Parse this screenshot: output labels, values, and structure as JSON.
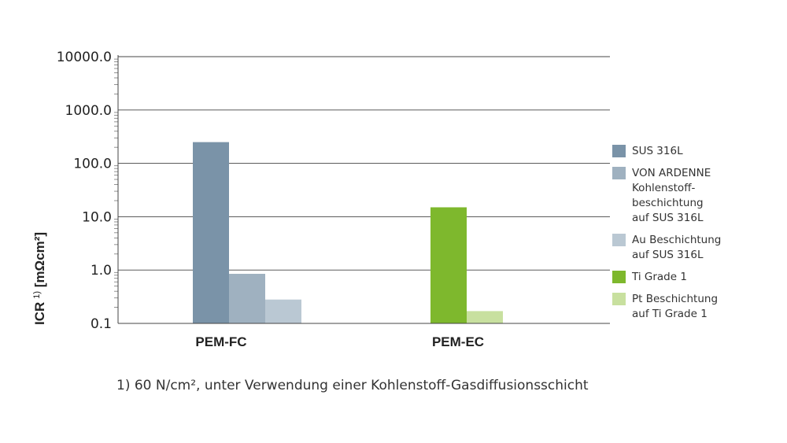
{
  "chart_data": {
    "type": "bar",
    "scale": "log",
    "ylim": [
      0.1,
      10000
    ],
    "ylabel": "ICR",
    "ylabel_sup": "1)",
    "ylabel_unit": " [mΩcm²]",
    "y_ticks": [
      0.1,
      1,
      10,
      100,
      1000,
      10000
    ],
    "y_tick_labels": [
      "0.1",
      "1.0",
      "10.0",
      "100.0",
      "1000.0",
      "10000.0"
    ],
    "grid": true,
    "legend_position": "right",
    "categories": [
      "PEM-FC",
      "PEM-EC"
    ],
    "series": [
      {
        "name": "SUS 316L",
        "color": "#7a93a8",
        "group": 0,
        "value": 250
      },
      {
        "name": "VON ARDENNE\nKohlenstoff-\nbeschichtung\nauf SUS 316L",
        "color": "#9fb1c0",
        "group": 0,
        "value": 0.85
      },
      {
        "name": "Au Beschichtung\nauf SUS 316L",
        "color": "#bac8d3",
        "group": 0,
        "value": 0.28
      },
      {
        "name": "Ti Grade 1",
        "color": "#7eb82d",
        "group": 1,
        "value": 15
      },
      {
        "name": "Pt Beschichtung\nauf Ti Grade 1",
        "color": "#c8e09f",
        "group": 1,
        "value": 0.17
      }
    ]
  },
  "footnote": "1) 60 N/cm², unter Verwendung einer Kohlenstoff-Gasdiffusionsschicht"
}
